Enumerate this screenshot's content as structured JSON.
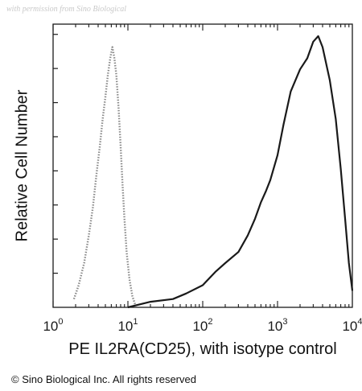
{
  "watermark": "with permission from Sino Biological",
  "copyright": "© Sino Biological Inc. All rights reserved",
  "chart_data": {
    "type": "area",
    "title": "",
    "xlabel": "PE IL2RA(CD25), with isotype control",
    "ylabel": "Relative Cell Number",
    "x_scale": "log",
    "xlim": [
      1,
      10000
    ],
    "ylim": [
      0,
      100
    ],
    "x_ticks": [
      {
        "value": 1,
        "base": "10",
        "exp": "0"
      },
      {
        "value": 10,
        "base": "10",
        "exp": "1"
      },
      {
        "value": 100,
        "base": "10",
        "exp": "2"
      },
      {
        "value": 1000,
        "base": "10",
        "exp": "3"
      },
      {
        "value": 10000,
        "base": "10",
        "exp": "4"
      }
    ],
    "y_tick_labels": "none",
    "grid": false,
    "series": [
      {
        "color": "#8a8a8a",
        "style": "dotted",
        "x": [
          1.9,
          2.2,
          2.6,
          3.0,
          3.4,
          3.8,
          4.2,
          4.6,
          5.0,
          5.4,
          5.8,
          6.2,
          6.6,
          7.0,
          7.5,
          8.0,
          8.5,
          9.0,
          9.6,
          10.5,
          11.5,
          12.5
        ],
        "y": [
          3,
          8,
          16,
          26,
          36,
          48,
          58,
          68,
          76,
          84,
          90,
          94,
          90,
          84,
          72,
          58,
          44,
          32,
          20,
          10,
          4,
          1
        ]
      },
      {
        "color": "#1a1a1a",
        "style": "solid",
        "x": [
          10,
          20,
          40,
          60,
          100,
          150,
          200,
          300,
          400,
          500,
          600,
          700,
          800,
          1000,
          1200,
          1500,
          2000,
          2500,
          3000,
          3500,
          4000,
          5000,
          6000,
          7000,
          8000,
          9000,
          10000
        ],
        "y": [
          0,
          2,
          3,
          5,
          8,
          13,
          16,
          20,
          26,
          32,
          38,
          42,
          46,
          55,
          66,
          78,
          86,
          90,
          96,
          98,
          94,
          82,
          68,
          50,
          32,
          16,
          6
        ]
      }
    ]
  }
}
